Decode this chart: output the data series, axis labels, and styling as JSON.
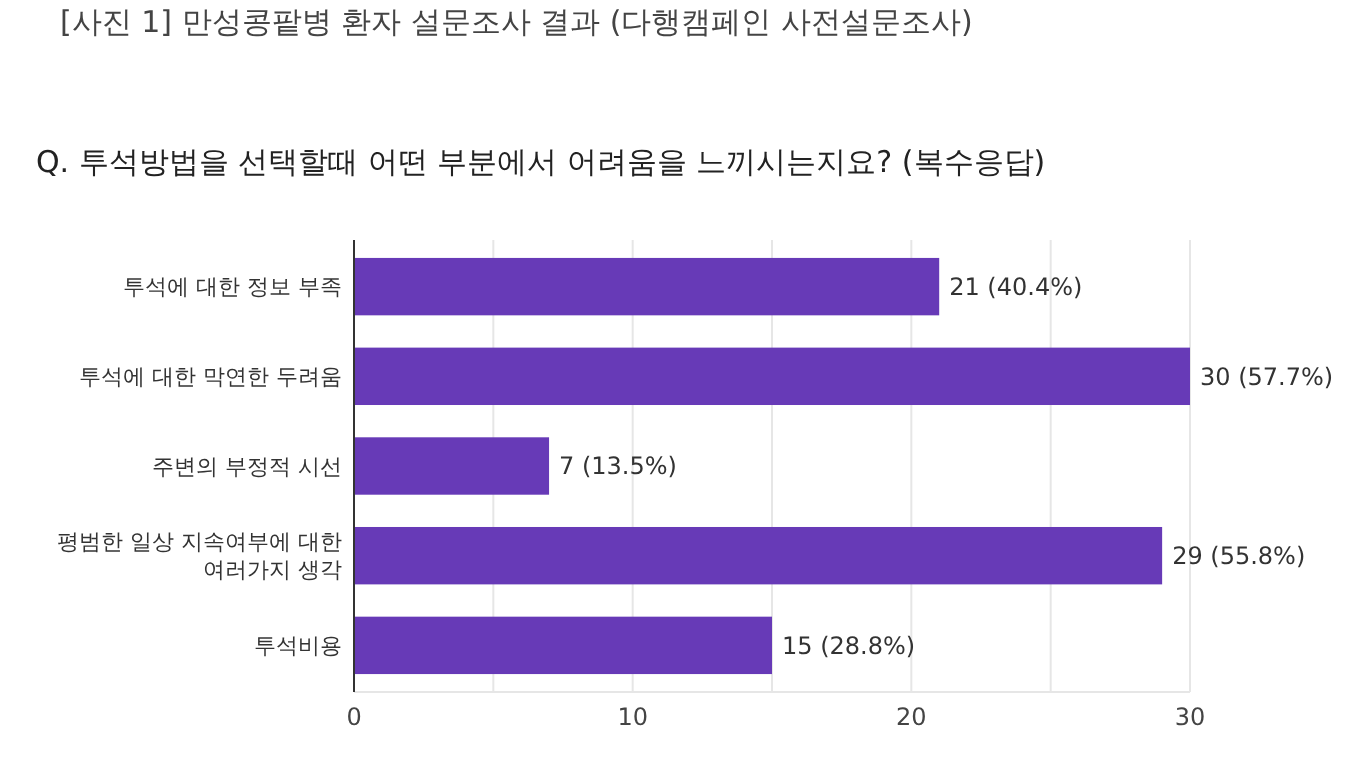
{
  "chart_data": {
    "type": "bar",
    "orientation": "horizontal",
    "title": "[사진 1] 만성콩팥병 환자 설문조사 결과 (다행캠페인 사전설문조사)",
    "subtitle": "Q. 투석방법을 선택할때 어떤 부분에서 어려움을 느끼시는지요? (복수응답)",
    "categories": [
      "투석에 대한 정보 부족",
      "투석에 대한 막연한 두려움",
      "주변의 부정적 시선",
      "평범한 일상 지속여부에 대한 여러가지 생각",
      "투석비용"
    ],
    "values": [
      21,
      30,
      7,
      29,
      15
    ],
    "value_labels": [
      "21 (40.4%)",
      "30 (57.7%)",
      "7 (13.5%)",
      "29 (55.8%)",
      "15 (28.8%)"
    ],
    "color": "#673ab7",
    "xlim": [
      0,
      30
    ],
    "xticks": [
      0,
      {
        "value": 5,
        "label": null
      },
      10,
      {
        "value": 15,
        "label": null
      },
      20,
      {
        "value": 25,
        "label": null
      },
      30
    ],
    "grid": "x"
  }
}
